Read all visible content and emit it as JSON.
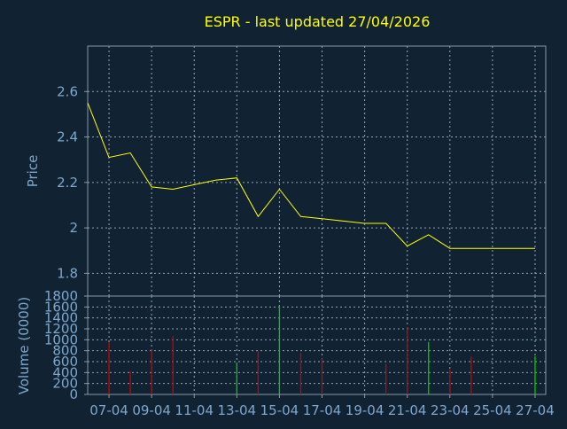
{
  "chart_data": [
    {
      "type": "line",
      "title": "ESPR - last updated 27/04/2026",
      "ylabel": "Price",
      "ylim": [
        1.7,
        2.8
      ],
      "yticks": [
        1.8,
        2,
        2.2,
        2.4,
        2.6
      ],
      "ytick_labels": [
        "1.8",
        "2",
        "2.2",
        "2.4",
        "2.6"
      ],
      "xlim": [
        0,
        21.5
      ],
      "grid": true,
      "series": [
        {
          "x": [
            0,
            1,
            2,
            3,
            4,
            5,
            6,
            7,
            8,
            9,
            10,
            11,
            12,
            13,
            14,
            15,
            16,
            17,
            18,
            19,
            20,
            21
          ],
          "values": [
            2.55,
            2.31,
            2.33,
            2.18,
            2.17,
            2.19,
            2.21,
            2.22,
            2.05,
            2.17,
            2.05,
            2.04,
            2.03,
            2.02,
            2.02,
            1.92,
            1.97,
            1.91,
            1.91,
            1.91,
            1.91,
            1.91
          ]
        }
      ]
    },
    {
      "type": "bar",
      "ylabel": "Volume (0000)",
      "ylim": [
        0,
        1800
      ],
      "yticks": [
        0,
        200,
        400,
        600,
        800,
        1000,
        1200,
        1400,
        1600,
        1800
      ],
      "ytick_labels": [
        "0",
        "200",
        "400",
        "600",
        "800",
        "1000",
        "1200",
        "1400",
        "1600",
        "1800"
      ],
      "xlim": [
        0,
        21.5
      ],
      "xticks": [
        1,
        3,
        5,
        7,
        9,
        11,
        13,
        15,
        17,
        19,
        21
      ],
      "xtick_labels": [
        "07-04",
        "09-04",
        "11-04",
        "13-04",
        "15-04",
        "17-04",
        "19-04",
        "21-04",
        "23-04",
        "25-04",
        "27-04"
      ],
      "grid": true,
      "bars": [
        {
          "x": 1,
          "value": 950,
          "direction": "down"
        },
        {
          "x": 2,
          "value": 430,
          "direction": "down"
        },
        {
          "x": 3,
          "value": 820,
          "direction": "down"
        },
        {
          "x": 4,
          "value": 1070,
          "direction": "down"
        },
        {
          "x": 7,
          "value": 580,
          "direction": "up"
        },
        {
          "x": 8,
          "value": 790,
          "direction": "down"
        },
        {
          "x": 9,
          "value": 1620,
          "direction": "up"
        },
        {
          "x": 10,
          "value": 760,
          "direction": "down"
        },
        {
          "x": 11,
          "value": 660,
          "direction": "down"
        },
        {
          "x": 14,
          "value": 560,
          "direction": "down"
        },
        {
          "x": 15,
          "value": 1230,
          "direction": "down"
        },
        {
          "x": 16,
          "value": 960,
          "direction": "up"
        },
        {
          "x": 17,
          "value": 460,
          "direction": "down"
        },
        {
          "x": 18,
          "value": 690,
          "direction": "down"
        },
        {
          "x": 21,
          "value": 700,
          "direction": "up"
        }
      ]
    }
  ],
  "colors": {
    "background": "#112233",
    "title": "#ffff00",
    "axis_text": "#7ea7cc",
    "frame": "#8899aa",
    "grid": "#c8d0dc",
    "price_line": "#ffff00",
    "volume_up": "#00cc00",
    "volume_down": "#cc0000"
  }
}
